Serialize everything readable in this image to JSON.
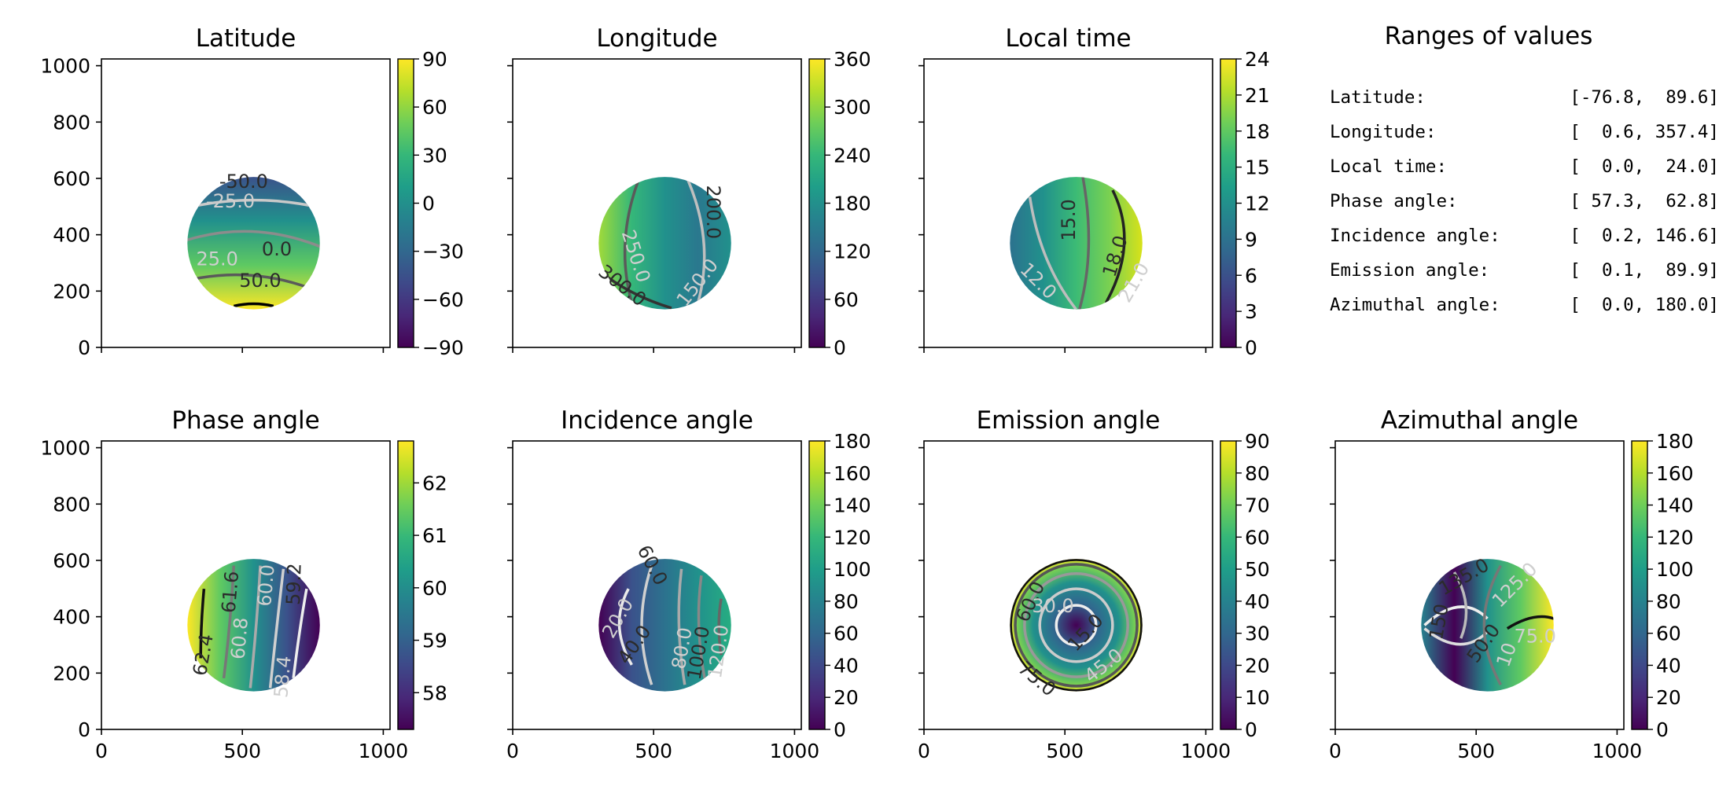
{
  "chart_data": [
    {
      "type": "heatmap",
      "title": "Latitude",
      "xlim": [
        0,
        1024
      ],
      "ylim": [
        0,
        1024
      ],
      "x_ticks": [],
      "y_ticks": [
        0,
        200,
        400,
        600,
        800,
        1000
      ],
      "colorbar": {
        "range": [
          -90,
          90
        ],
        "ticks": [
          "90",
          "60",
          "30",
          "0",
          "−30",
          "−60",
          "−90"
        ]
      },
      "disk": {
        "center": [
          540,
          370
        ],
        "radius": 235
      },
      "contour_labels": [
        "-50.0",
        "-25.0",
        "0.0",
        "25.0",
        "50.0"
      ]
    },
    {
      "type": "heatmap",
      "title": "Longitude",
      "xlim": [
        0,
        1024
      ],
      "ylim": [
        0,
        1024
      ],
      "x_ticks": [],
      "y_ticks": [],
      "colorbar": {
        "range": [
          0,
          360
        ],
        "ticks": [
          "360",
          "300",
          "240",
          "180",
          "120",
          "60",
          "0"
        ]
      },
      "disk": {
        "center": [
          540,
          370
        ],
        "radius": 235
      },
      "contour_labels": [
        "200.0",
        "250.0",
        "300.0",
        "150.0"
      ]
    },
    {
      "type": "heatmap",
      "title": "Local time",
      "xlim": [
        0,
        1024
      ],
      "ylim": [
        0,
        1024
      ],
      "x_ticks": [],
      "y_ticks": [],
      "colorbar": {
        "range": [
          0,
          24
        ],
        "ticks": [
          "24",
          "21",
          "18",
          "15",
          "12",
          "9",
          "6",
          "3",
          "0"
        ]
      },
      "disk": {
        "center": [
          540,
          370
        ],
        "radius": 235
      },
      "contour_labels": [
        "15.0",
        "12.0",
        "18.0",
        "21.0"
      ]
    },
    {
      "type": "heatmap",
      "title": "Phase angle",
      "xlim": [
        0,
        1024
      ],
      "ylim": [
        0,
        1024
      ],
      "x_ticks": [
        0,
        500,
        1000
      ],
      "y_ticks": [
        0,
        200,
        400,
        600,
        800,
        1000
      ],
      "colorbar": {
        "range": [
          57.3,
          62.8
        ],
        "ticks": [
          "62",
          "61",
          "60",
          "59",
          "58"
        ]
      },
      "disk": {
        "center": [
          540,
          370
        ],
        "radius": 235
      },
      "contour_labels": [
        "61.6",
        "60.0",
        "59.2",
        "60.8",
        "62.4",
        "58.4"
      ]
    },
    {
      "type": "heatmap",
      "title": "Incidence angle",
      "xlim": [
        0,
        1024
      ],
      "ylim": [
        0,
        1024
      ],
      "x_ticks": [
        0,
        500,
        1000
      ],
      "y_ticks": [],
      "colorbar": {
        "range": [
          0,
          180
        ],
        "ticks": [
          "180",
          "160",
          "140",
          "120",
          "100",
          "80",
          "60",
          "40",
          "20",
          "0"
        ]
      },
      "disk": {
        "center": [
          540,
          370
        ],
        "radius": 235
      },
      "contour_labels": [
        "60.0",
        "20.0",
        "40.0",
        "80.0",
        "100.0",
        "120.0"
      ]
    },
    {
      "type": "heatmap",
      "title": "Emission angle",
      "xlim": [
        0,
        1024
      ],
      "ylim": [
        0,
        1024
      ],
      "x_ticks": [
        0,
        500,
        1000
      ],
      "y_ticks": [],
      "colorbar": {
        "range": [
          0,
          90
        ],
        "ticks": [
          "90",
          "80",
          "70",
          "60",
          "50",
          "40",
          "30",
          "20",
          "10",
          "0"
        ]
      },
      "disk": {
        "center": [
          540,
          370
        ],
        "radius": 235
      },
      "contour_labels": [
        "60.0",
        "30.0",
        "15.0",
        "45.0",
        "75.0"
      ]
    },
    {
      "type": "heatmap",
      "title": "Azimuthal angle",
      "xlim": [
        0,
        1024
      ],
      "ylim": [
        0,
        1024
      ],
      "x_ticks": [
        0,
        500,
        1000
      ],
      "y_ticks": [],
      "colorbar": {
        "range": [
          0,
          180
        ],
        "ticks": [
          "180",
          "160",
          "140",
          "120",
          "100",
          "80",
          "60",
          "40",
          "20",
          "0"
        ]
      },
      "disk": {
        "center": [
          540,
          370
        ],
        "radius": 235
      },
      "contour_labels": [
        "135.0",
        "125.0",
        "150",
        "75.0",
        "50.0",
        "10"
      ]
    }
  ],
  "ranges_panel": {
    "title": "Ranges of values",
    "rows": [
      {
        "label": "Latitude:",
        "range": "[-76.8,  89.6]"
      },
      {
        "label": "Longitude:",
        "range": "[  0.6, 357.4]"
      },
      {
        "label": "Local time:",
        "range": "[  0.0,  24.0]"
      },
      {
        "label": "Phase angle:",
        "range": "[ 57.3,  62.8]"
      },
      {
        "label": "Incidence angle:",
        "range": "[  0.2, 146.6]"
      },
      {
        "label": "Emission angle:",
        "range": "[  0.1,  89.9]"
      },
      {
        "label": "Azimuthal angle:",
        "range": "[  0.0, 180.0]"
      }
    ]
  }
}
